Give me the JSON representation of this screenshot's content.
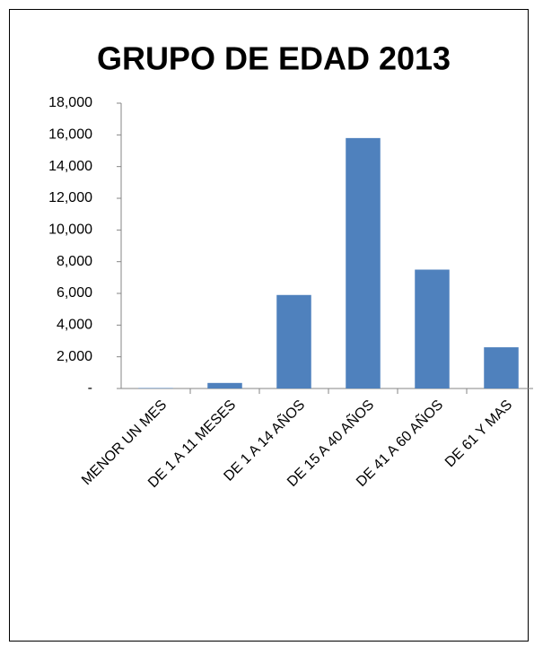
{
  "chart_data": {
    "type": "bar",
    "title": "GRUPO DE EDAD 2013",
    "categories": [
      "MENOR UN MES",
      "DE 1 A 11 MESES",
      "DE 1 A 14 AÑOS",
      "DE 15 A 40 AÑOS",
      "DE 41 A 60 AÑOS",
      "DE 61 Y MAS"
    ],
    "values": [
      30,
      350,
      5900,
      15800,
      7500,
      2600
    ],
    "color": "#4f81bd",
    "ylim": [
      0,
      18000
    ],
    "yticks": [
      {
        "value": 0,
        "label": "-"
      },
      {
        "value": 2000,
        "label": "2,000"
      },
      {
        "value": 4000,
        "label": "4,000"
      },
      {
        "value": 6000,
        "label": "6,000"
      },
      {
        "value": 8000,
        "label": "8,000"
      },
      {
        "value": 10000,
        "label": "10,000"
      },
      {
        "value": 12000,
        "label": "12,000"
      },
      {
        "value": 14000,
        "label": "14,000"
      },
      {
        "value": 16000,
        "label": "16,000"
      },
      {
        "value": 18000,
        "label": "18,000"
      }
    ],
    "grid": false
  }
}
